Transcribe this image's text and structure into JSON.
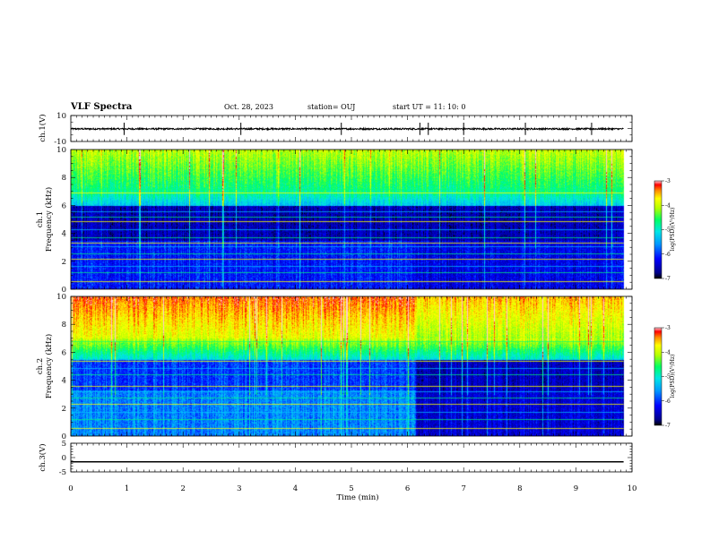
{
  "header": {
    "title": "VLF Spectra",
    "date": "Oct. 28, 2023",
    "station": "station= OUJ",
    "start_ut": "start  UT =   11: 10: 0"
  },
  "chart_data": [
    {
      "type": "line",
      "ylabel": "ch.1(V)",
      "ylim": [
        -10,
        10
      ],
      "yticks": [
        "10",
        "-10"
      ],
      "xlim": [
        0,
        10
      ],
      "series": [
        {
          "baseline": -0.3,
          "noise_amplitude": 0.6,
          "spike_times_min": [
            0.95,
            3.03,
            4.82,
            6.22,
            6.37,
            7.0,
            8.1,
            9.28
          ],
          "color": "#000000"
        }
      ]
    },
    {
      "type": "heatmap",
      "ylabel": "ch.1\nFrequency (kHz)",
      "ylim": [
        0,
        10
      ],
      "yticks": [
        "0",
        "2",
        "4",
        "6",
        "8",
        "10"
      ],
      "xlim": [
        0,
        10
      ],
      "data_end_min": 9.85,
      "colorbar": {
        "label": "log(PSD)(V²/Hz)",
        "range": [
          -7,
          -3
        ],
        "ticks": [
          "-3",
          "-4",
          "-5",
          "-6",
          "-7"
        ]
      },
      "tonal_lines_khz": [
        0.55,
        1.2,
        1.65,
        2.2,
        2.55,
        3.05,
        3.35,
        3.7,
        4.3,
        4.9,
        5.2,
        5.6,
        6.95,
        7.2
      ]
    },
    {
      "type": "heatmap",
      "ylabel": "ch.2\nFrequency (kHz)",
      "ylim": [
        0,
        10
      ],
      "yticks": [
        "0",
        "2",
        "4",
        "6",
        "8",
        "10"
      ],
      "xlim": [
        0,
        10
      ],
      "data_end_min": 9.85,
      "transition_min": 6.15,
      "colorbar": {
        "label": "log(PSD)(V²/Hz)",
        "range": [
          -7,
          -3
        ],
        "ticks": [
          "-3",
          "-4",
          "-5",
          "-6",
          "-7"
        ]
      },
      "tonal_lines_khz": [
        0.6,
        1.25,
        1.7,
        2.3,
        2.75,
        3.2,
        3.6,
        4.4,
        4.9,
        5.4,
        6.8
      ]
    },
    {
      "type": "line",
      "ylabel": "ch.3(V)",
      "ylim": [
        -5,
        5
      ],
      "yticks": [
        "5",
        "0",
        "-5"
      ],
      "xlim": [
        0,
        10
      ],
      "series": [
        {
          "constant": -1.5,
          "end_min": 9.85,
          "color": "#000000"
        }
      ]
    }
  ],
  "xaxis": {
    "label": "Time (min)",
    "range": [
      0,
      10
    ],
    "ticks": [
      "0",
      "1",
      "2",
      "3",
      "4",
      "5",
      "6",
      "7",
      "8",
      "9",
      "10"
    ]
  }
}
